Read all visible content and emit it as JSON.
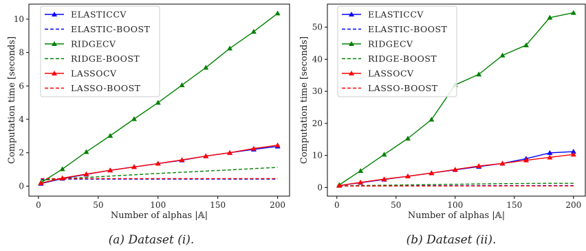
{
  "chart_data": [
    {
      "type": "line",
      "caption": "(a) Dataset (i).",
      "xlabel": "Number of alphas |𝔸|",
      "ylabel": "Computation time [seconds]",
      "xlim": [
        -8,
        210
      ],
      "ylim": [
        -0.6,
        10.9
      ],
      "xticks": [
        0,
        50,
        100,
        150,
        200
      ],
      "yticks": [
        0,
        2,
        4,
        6,
        8,
        10
      ],
      "legend_position": "top-left",
      "series": [
        {
          "name": "ELASTICCV",
          "color": "#0000ff",
          "style": "solid",
          "marker": "triangle",
          "x": [
            2,
            20,
            40,
            60,
            80,
            100,
            120,
            140,
            160,
            180,
            200
          ],
          "y": [
            0.15,
            0.45,
            0.7,
            0.95,
            1.15,
            1.35,
            1.55,
            1.8,
            2.0,
            2.2,
            2.38
          ]
        },
        {
          "name": "ELASTIC-BOOST",
          "color": "#0000ff",
          "style": "dashed",
          "marker": "none",
          "x": [
            2,
            200
          ],
          "y": [
            0.42,
            0.42
          ]
        },
        {
          "name": "RIDGECV",
          "color": "#008000",
          "style": "solid",
          "marker": "triangle",
          "x": [
            2,
            20,
            40,
            60,
            80,
            100,
            120,
            140,
            160,
            180,
            200
          ],
          "y": [
            0.2,
            1.02,
            2.05,
            3.02,
            4.02,
            5.0,
            6.05,
            7.1,
            8.25,
            9.25,
            10.35
          ]
        },
        {
          "name": "RIDGE-BOOST",
          "color": "#008000",
          "style": "dashed",
          "marker": "none",
          "x": [
            2,
            20,
            40,
            60,
            80,
            100,
            120,
            140,
            160,
            180,
            200
          ],
          "y": [
            0.35,
            0.45,
            0.52,
            0.6,
            0.68,
            0.76,
            0.83,
            0.9,
            0.97,
            1.05,
            1.12
          ]
        },
        {
          "name": "LASSOCV",
          "color": "#ff0000",
          "style": "solid",
          "marker": "triangle",
          "x": [
            2,
            20,
            40,
            60,
            80,
            100,
            120,
            140,
            160,
            180,
            200
          ],
          "y": [
            0.18,
            0.48,
            0.72,
            0.95,
            1.15,
            1.35,
            1.57,
            1.8,
            2.0,
            2.25,
            2.45
          ]
        },
        {
          "name": "LASSO-BOOST",
          "color": "#ff0000",
          "style": "dashed",
          "marker": "none",
          "x": [
            2,
            200
          ],
          "y": [
            0.45,
            0.45
          ]
        }
      ]
    },
    {
      "type": "line",
      "caption": "(b) Dataset (ii).",
      "xlabel": "Number of alphas |𝔸|",
      "ylabel": "Computation time [seconds]",
      "xlim": [
        -8,
        210
      ],
      "ylim": [
        -2.7,
        57.2
      ],
      "xticks": [
        0,
        50,
        100,
        150,
        200
      ],
      "yticks": [
        0,
        10,
        20,
        30,
        40,
        50
      ],
      "legend_position": "top-left",
      "series": [
        {
          "name": "ELASTICCV",
          "color": "#0000ff",
          "style": "solid",
          "marker": "triangle",
          "x": [
            2,
            20,
            40,
            60,
            80,
            100,
            120,
            140,
            160,
            180,
            200
          ],
          "y": [
            0.6,
            1.5,
            2.5,
            3.5,
            4.5,
            5.5,
            6.5,
            7.5,
            9.0,
            10.8,
            11.2
          ]
        },
        {
          "name": "ELASTIC-BOOST",
          "color": "#0000ff",
          "style": "dashed",
          "marker": "none",
          "x": [
            2,
            200
          ],
          "y": [
            0.5,
            0.6
          ]
        },
        {
          "name": "RIDGECV",
          "color": "#008000",
          "style": "solid",
          "marker": "triangle",
          "x": [
            2,
            20,
            40,
            60,
            80,
            100,
            120,
            140,
            160,
            180,
            200
          ],
          "y": [
            0.8,
            5.2,
            10.3,
            15.3,
            21.2,
            32.0,
            35.3,
            41.2,
            44.4,
            53.0,
            54.5
          ]
        },
        {
          "name": "RIDGE-BOOST",
          "color": "#008000",
          "style": "dashed",
          "marker": "none",
          "x": [
            2,
            20,
            40,
            60,
            80,
            100,
            120,
            140,
            160,
            180,
            200
          ],
          "y": [
            0.5,
            0.6,
            0.7,
            0.8,
            0.9,
            1.0,
            1.1,
            1.2,
            1.25,
            1.3,
            1.3
          ]
        },
        {
          "name": "LASSOCV",
          "color": "#ff0000",
          "style": "solid",
          "marker": "triangle",
          "x": [
            2,
            20,
            40,
            60,
            80,
            100,
            120,
            140,
            160,
            180,
            200
          ],
          "y": [
            0.6,
            1.6,
            2.6,
            3.5,
            4.5,
            5.6,
            6.7,
            7.5,
            8.5,
            9.4,
            10.3
          ]
        },
        {
          "name": "LASSO-BOOST",
          "color": "#ff0000",
          "style": "dashed",
          "marker": "none",
          "x": [
            2,
            200
          ],
          "y": [
            0.45,
            0.5
          ]
        }
      ]
    }
  ]
}
